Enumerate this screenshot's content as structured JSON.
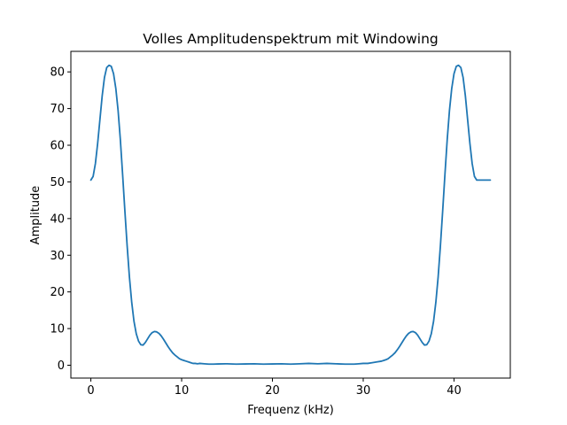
{
  "chart_data": {
    "type": "line",
    "title": "Volles Amplitudenspektrum mit Windowing",
    "xlabel": "Frequenz (kHz)",
    "ylabel": "Amplitude",
    "xlim": [
      -2.2,
      46.2
    ],
    "ylim": [
      -3.5,
      85.6
    ],
    "xticks": [
      0,
      10,
      20,
      30,
      40
    ],
    "yticks": [
      0,
      10,
      20,
      30,
      40,
      50,
      60,
      70,
      80
    ],
    "grid": false,
    "line_color": "#1f77b4",
    "series": [
      {
        "x": [
          0,
          0.25,
          0.5,
          0.75,
          1,
          1.25,
          1.5,
          1.75,
          2,
          2.25,
          2.5,
          2.75,
          3,
          3.25,
          3.5,
          3.75,
          4,
          4.25,
          4.5,
          4.75,
          5,
          5.25,
          5.5,
          5.75,
          6,
          6.25,
          6.5,
          6.75,
          7,
          7.25,
          7.5,
          7.75,
          8,
          8.25,
          8.5,
          8.75,
          9,
          9.25,
          9.5,
          9.75,
          10,
          10.25,
          10.5,
          10.75,
          11,
          11.25,
          11.5,
          11.75,
          12,
          12.5,
          13,
          13.5,
          14,
          15,
          16,
          17,
          18,
          19,
          20,
          21,
          22,
          23,
          24,
          25,
          26,
          27,
          28,
          29,
          29.5,
          30,
          30.5,
          31,
          31.5,
          32,
          32.25,
          32.5,
          32.75,
          33,
          33.25,
          33.5,
          33.75,
          34,
          34.25,
          34.5,
          34.75,
          35,
          35.25,
          35.5,
          35.75,
          36,
          36.25,
          36.5,
          36.75,
          37,
          37.25,
          37.5,
          37.75,
          38,
          38.25,
          38.5,
          38.75,
          39,
          39.25,
          39.5,
          39.75,
          40,
          40.25,
          40.5,
          40.75,
          41,
          41.25,
          41.5,
          41.75,
          42,
          42.25,
          42.5,
          42.75,
          43,
          43.25,
          43.5,
          43.75,
          44
        ],
        "y": [
          50.5,
          51.5,
          55,
          60.5,
          67,
          73.5,
          78.5,
          81.2,
          81.8,
          81.5,
          79.5,
          75.5,
          69.5,
          61.5,
          52,
          42,
          32.5,
          24,
          17.2,
          12,
          8.6,
          6.6,
          5.6,
          5.5,
          6.2,
          7.2,
          8.2,
          8.9,
          9.2,
          9.1,
          8.7,
          8,
          7.1,
          6.1,
          5.1,
          4.2,
          3.4,
          2.8,
          2.3,
          1.8,
          1.5,
          1.3,
          1.1,
          0.9,
          0.7,
          0.5,
          0.5,
          0.4,
          0.5,
          0.4,
          0.3,
          0.3,
          0.35,
          0.4,
          0.3,
          0.35,
          0.4,
          0.3,
          0.35,
          0.4,
          0.3,
          0.4,
          0.5,
          0.4,
          0.5,
          0.4,
          0.3,
          0.3,
          0.4,
          0.5,
          0.5,
          0.7,
          0.9,
          1.1,
          1.3,
          1.5,
          1.8,
          2.3,
          2.8,
          3.4,
          4.2,
          5.1,
          6.1,
          7.1,
          8,
          8.7,
          9.1,
          9.2,
          8.9,
          8.2,
          7.2,
          6.2,
          5.5,
          5.6,
          6.6,
          8.6,
          12,
          17.2,
          24,
          32.5,
          42,
          52,
          61.5,
          69.5,
          75.5,
          79.5,
          81.5,
          81.8,
          81.2,
          78.5,
          73.5,
          67,
          60.5,
          55,
          51.5,
          50.5,
          50.5,
          50.5,
          50.5,
          50.5,
          50.5,
          50.5
        ]
      }
    ]
  }
}
